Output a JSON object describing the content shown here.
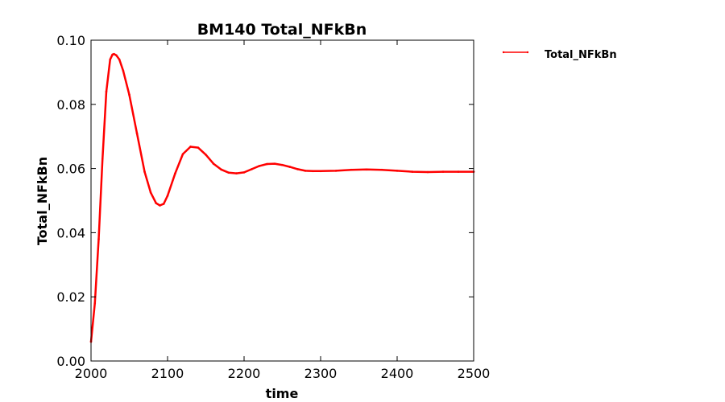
{
  "chart_data": {
    "type": "line",
    "title": "BM140 Total_NFkBn",
    "xlabel": "time",
    "ylabel": "Total_NFkBn",
    "xlim": [
      2000,
      2500
    ],
    "ylim": [
      0.0,
      0.1
    ],
    "x_ticks": [
      "2000",
      "2100",
      "2200",
      "2300",
      "2400",
      "2500"
    ],
    "y_ticks": [
      "0.00",
      "0.02",
      "0.04",
      "0.06",
      "0.08",
      "0.10"
    ],
    "grid": false,
    "legend_position": "outside-top-right",
    "series": [
      {
        "name": "Total_NFkBn",
        "color": "#ff0000",
        "marker": "point",
        "x": [
          2000,
          2005,
          2010,
          2015,
          2020,
          2025,
          2028,
          2030,
          2033,
          2037,
          2042,
          2050,
          2060,
          2070,
          2078,
          2085,
          2090,
          2095,
          2100,
          2110,
          2120,
          2130,
          2140,
          2150,
          2160,
          2170,
          2180,
          2190,
          2200,
          2210,
          2220,
          2230,
          2240,
          2250,
          2260,
          2270,
          2280,
          2290,
          2300,
          2320,
          2340,
          2360,
          2380,
          2400,
          2420,
          2440,
          2460,
          2480,
          2500
        ],
        "y": [
          0.006,
          0.018,
          0.038,
          0.063,
          0.084,
          0.094,
          0.0955,
          0.0957,
          0.0953,
          0.094,
          0.0905,
          0.083,
          0.071,
          0.059,
          0.0525,
          0.0492,
          0.0485,
          0.049,
          0.0515,
          0.0585,
          0.0645,
          0.0668,
          0.0665,
          0.0643,
          0.0615,
          0.0597,
          0.0587,
          0.0585,
          0.0588,
          0.0598,
          0.0608,
          0.0614,
          0.0615,
          0.0611,
          0.0605,
          0.0598,
          0.0593,
          0.0592,
          0.0592,
          0.0593,
          0.0596,
          0.0597,
          0.0596,
          0.0593,
          0.059,
          0.0589,
          0.059,
          0.059,
          0.059
        ]
      }
    ]
  }
}
